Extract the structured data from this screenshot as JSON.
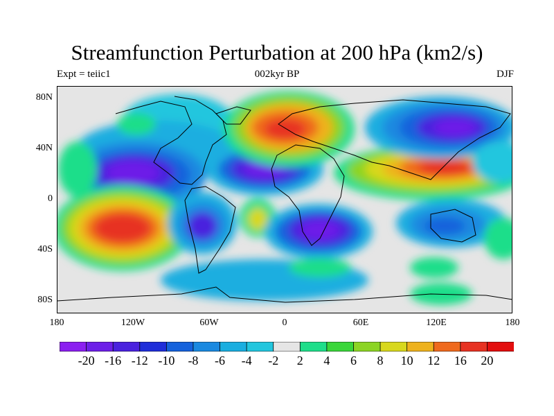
{
  "title": "Streamfunction Perturbation at 200 hPa (km2/s)",
  "subtitle_left": "Expt = teiic1",
  "subtitle_center": "002kyr BP",
  "subtitle_right": "DJF",
  "lat_labels": [
    "80N",
    "40N",
    "0",
    "40S",
    "80S"
  ],
  "lon_labels": [
    "180",
    "120W",
    "60W",
    "0",
    "60E",
    "120E",
    "180"
  ],
  "colorbar": {
    "labels": [
      "-20",
      "-16",
      "-12",
      "-10",
      "-8",
      "-6",
      "-4",
      "-2",
      "2",
      "4",
      "6",
      "8",
      "10",
      "12",
      "16",
      "20"
    ],
    "colors": [
      "#8b1ff0",
      "#6d1fe8",
      "#4a22de",
      "#1f2ed9",
      "#1562dc",
      "#1a89e0",
      "#1aaee0",
      "#22c6de",
      "#e5e5e5",
      "#1ede8a",
      "#3ad63a",
      "#8cd424",
      "#d8d81e",
      "#eeb21e",
      "#ef6a1e",
      "#e73222",
      "#e30e0e"
    ]
  },
  "colors": {
    "land_outline": "#000000",
    "neutral": "#e5e5e5"
  }
}
